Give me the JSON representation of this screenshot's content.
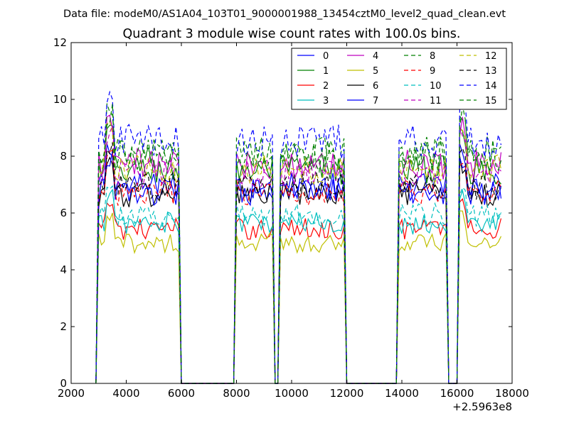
{
  "chart_data": {
    "type": "line",
    "suptitle": "Data file: modeM0/AS1A04_103T01_9000001988_13454cztM0_level2_quad_clean.evt",
    "title": "Quadrant 3 module wise count rates with 100.0s bins.",
    "xlabel": "",
    "ylabel": "",
    "offset_label": "+2.5963e8",
    "xlim": [
      2000,
      18000
    ],
    "ylim": [
      0,
      12
    ],
    "xticks": [
      2000,
      4000,
      6000,
      8000,
      10000,
      12000,
      14000,
      16000,
      18000
    ],
    "yticks": [
      0,
      2,
      4,
      6,
      8,
      10,
      12
    ],
    "grid": false,
    "legend_position": "top-right",
    "legend_columns": 4,
    "series_styles": [
      {
        "name": "0",
        "color": "#0000ff",
        "dash": "solid"
      },
      {
        "name": "1",
        "color": "#008000",
        "dash": "solid"
      },
      {
        "name": "2",
        "color": "#ff0000",
        "dash": "solid"
      },
      {
        "name": "3",
        "color": "#00bfbf",
        "dash": "solid"
      },
      {
        "name": "4",
        "color": "#bf00bf",
        "dash": "solid"
      },
      {
        "name": "5",
        "color": "#bfbf00",
        "dash": "solid"
      },
      {
        "name": "6",
        "color": "#000000",
        "dash": "solid"
      },
      {
        "name": "7",
        "color": "#0000ff",
        "dash": "solid"
      },
      {
        "name": "8",
        "color": "#008000",
        "dash": "dashed"
      },
      {
        "name": "9",
        "color": "#ff0000",
        "dash": "dashed"
      },
      {
        "name": "10",
        "color": "#00bfbf",
        "dash": "dashed"
      },
      {
        "name": "11",
        "color": "#bf00bf",
        "dash": "dashed"
      },
      {
        "name": "12",
        "color": "#bfbf00",
        "dash": "dashed"
      },
      {
        "name": "13",
        "color": "#000000",
        "dash": "dashed"
      },
      {
        "name": "14",
        "color": "#0000ff",
        "dash": "dashed"
      },
      {
        "name": "15",
        "color": "#008000",
        "dash": "dashed"
      }
    ],
    "bin_seconds": 100,
    "active_intervals": [
      [
        2950,
        3200
      ],
      [
        3300,
        5900
      ],
      [
        8000,
        9300
      ],
      [
        9600,
        11900
      ],
      [
        13900,
        15600
      ],
      [
        16100,
        17600
      ]
    ],
    "series_levels": [
      7.0,
      7.6,
      5.5,
      5.7,
      7.8,
      5.0,
      6.7,
      6.8,
      8.2,
      6.8,
      6.0,
      7.5,
      7.6,
      7.0,
      8.6,
      8.1
    ],
    "series_x": [
      2900,
      3000,
      3100,
      3200,
      3300,
      3400,
      3500,
      3600,
      3700,
      3800,
      3900,
      4000,
      4100,
      4200,
      4300,
      4400,
      4500,
      4600,
      4700,
      4800,
      4900,
      5000,
      5100,
      5200,
      5300,
      5400,
      5500,
      5600,
      5700,
      5800,
      5900,
      6000,
      6100,
      6200,
      6300,
      6400,
      6500,
      6600,
      6700,
      6800,
      6900,
      7000,
      7100,
      7200,
      7300,
      7400,
      7500,
      7600,
      7700,
      7800,
      7900,
      8000,
      8100,
      8200,
      8300,
      8400,
      8500,
      8600,
      8700,
      8800,
      8900,
      9000,
      9100,
      9200,
      9300,
      9400,
      9500,
      9600,
      9700,
      9800,
      9900,
      10000,
      10100,
      10200,
      10300,
      10400,
      10500,
      10600,
      10700,
      10800,
      10900,
      11000,
      11100,
      11200,
      11300,
      11400,
      11500,
      11600,
      11700,
      11800,
      11900,
      12000,
      12100,
      12200,
      12300,
      12400,
      12500,
      12600,
      12700,
      12800,
      12900,
      13000,
      13100,
      13200,
      13300,
      13400,
      13500,
      13600,
      13700,
      13800,
      13900,
      14000,
      14100,
      14200,
      14300,
      14400,
      14500,
      14600,
      14700,
      14800,
      14900,
      15000,
      15100,
      15200,
      15300,
      15400,
      15500,
      15600,
      15700,
      15800,
      15900,
      16000,
      16100,
      16200,
      16300,
      16400,
      16500,
      16600,
      16700,
      16800,
      16900,
      17000,
      17100,
      17200,
      17300,
      17400,
      17500,
      17600
    ]
  }
}
